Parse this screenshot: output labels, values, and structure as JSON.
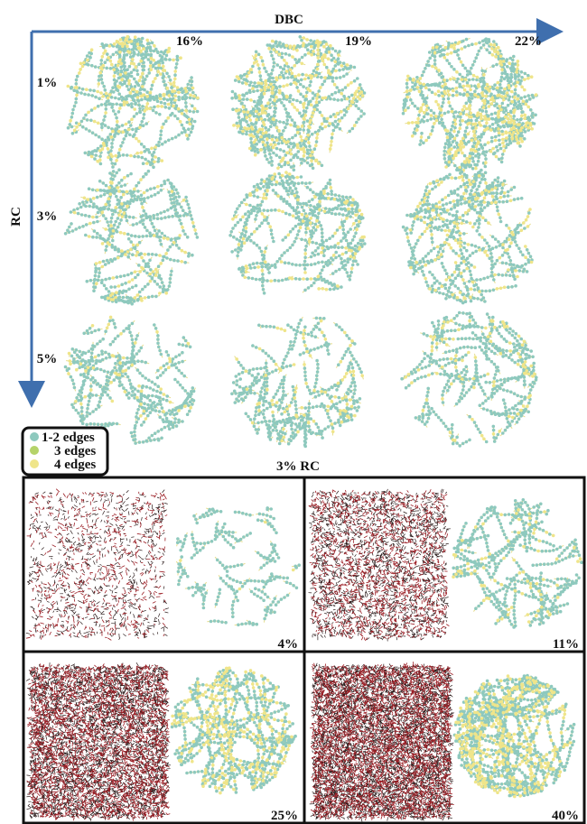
{
  "axes": {
    "x_label": "DBC",
    "y_label": "RC",
    "columns": [
      "16%",
      "19%",
      "22%"
    ],
    "rows": [
      "1%",
      "3%",
      "5%"
    ]
  },
  "legend": {
    "items": [
      "1-2 edges",
      "3 edges",
      "4 edges"
    ]
  },
  "bottom": {
    "title": "3% RC",
    "panels": [
      "4%",
      "11%",
      "25%",
      "40%"
    ]
  }
}
